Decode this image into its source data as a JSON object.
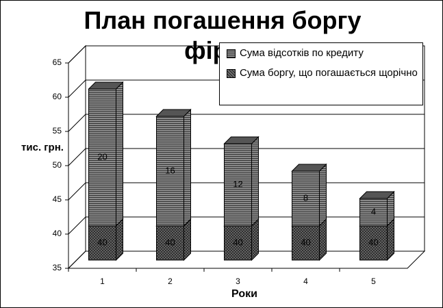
{
  "chart_data": {
    "type": "bar3d-stacked",
    "title": "План погашення боргу фірми",
    "xlabel": "Роки",
    "ylabel": "тис. грн.",
    "categories": [
      "1",
      "2",
      "3",
      "4",
      "5"
    ],
    "series": [
      {
        "name": "Сума боргу, що  погашається щорічно",
        "color": "#707070",
        "values": [
          40,
          40,
          40,
          40,
          40
        ]
      },
      {
        "name": "Сума відсотків по кредиту",
        "color": "#8a8a8a",
        "values": [
          20,
          16,
          12,
          8,
          4
        ]
      }
    ],
    "ylim": [
      35,
      65
    ],
    "yticks": [
      35,
      40,
      45,
      50,
      55,
      60,
      65
    ],
    "grid": true
  }
}
